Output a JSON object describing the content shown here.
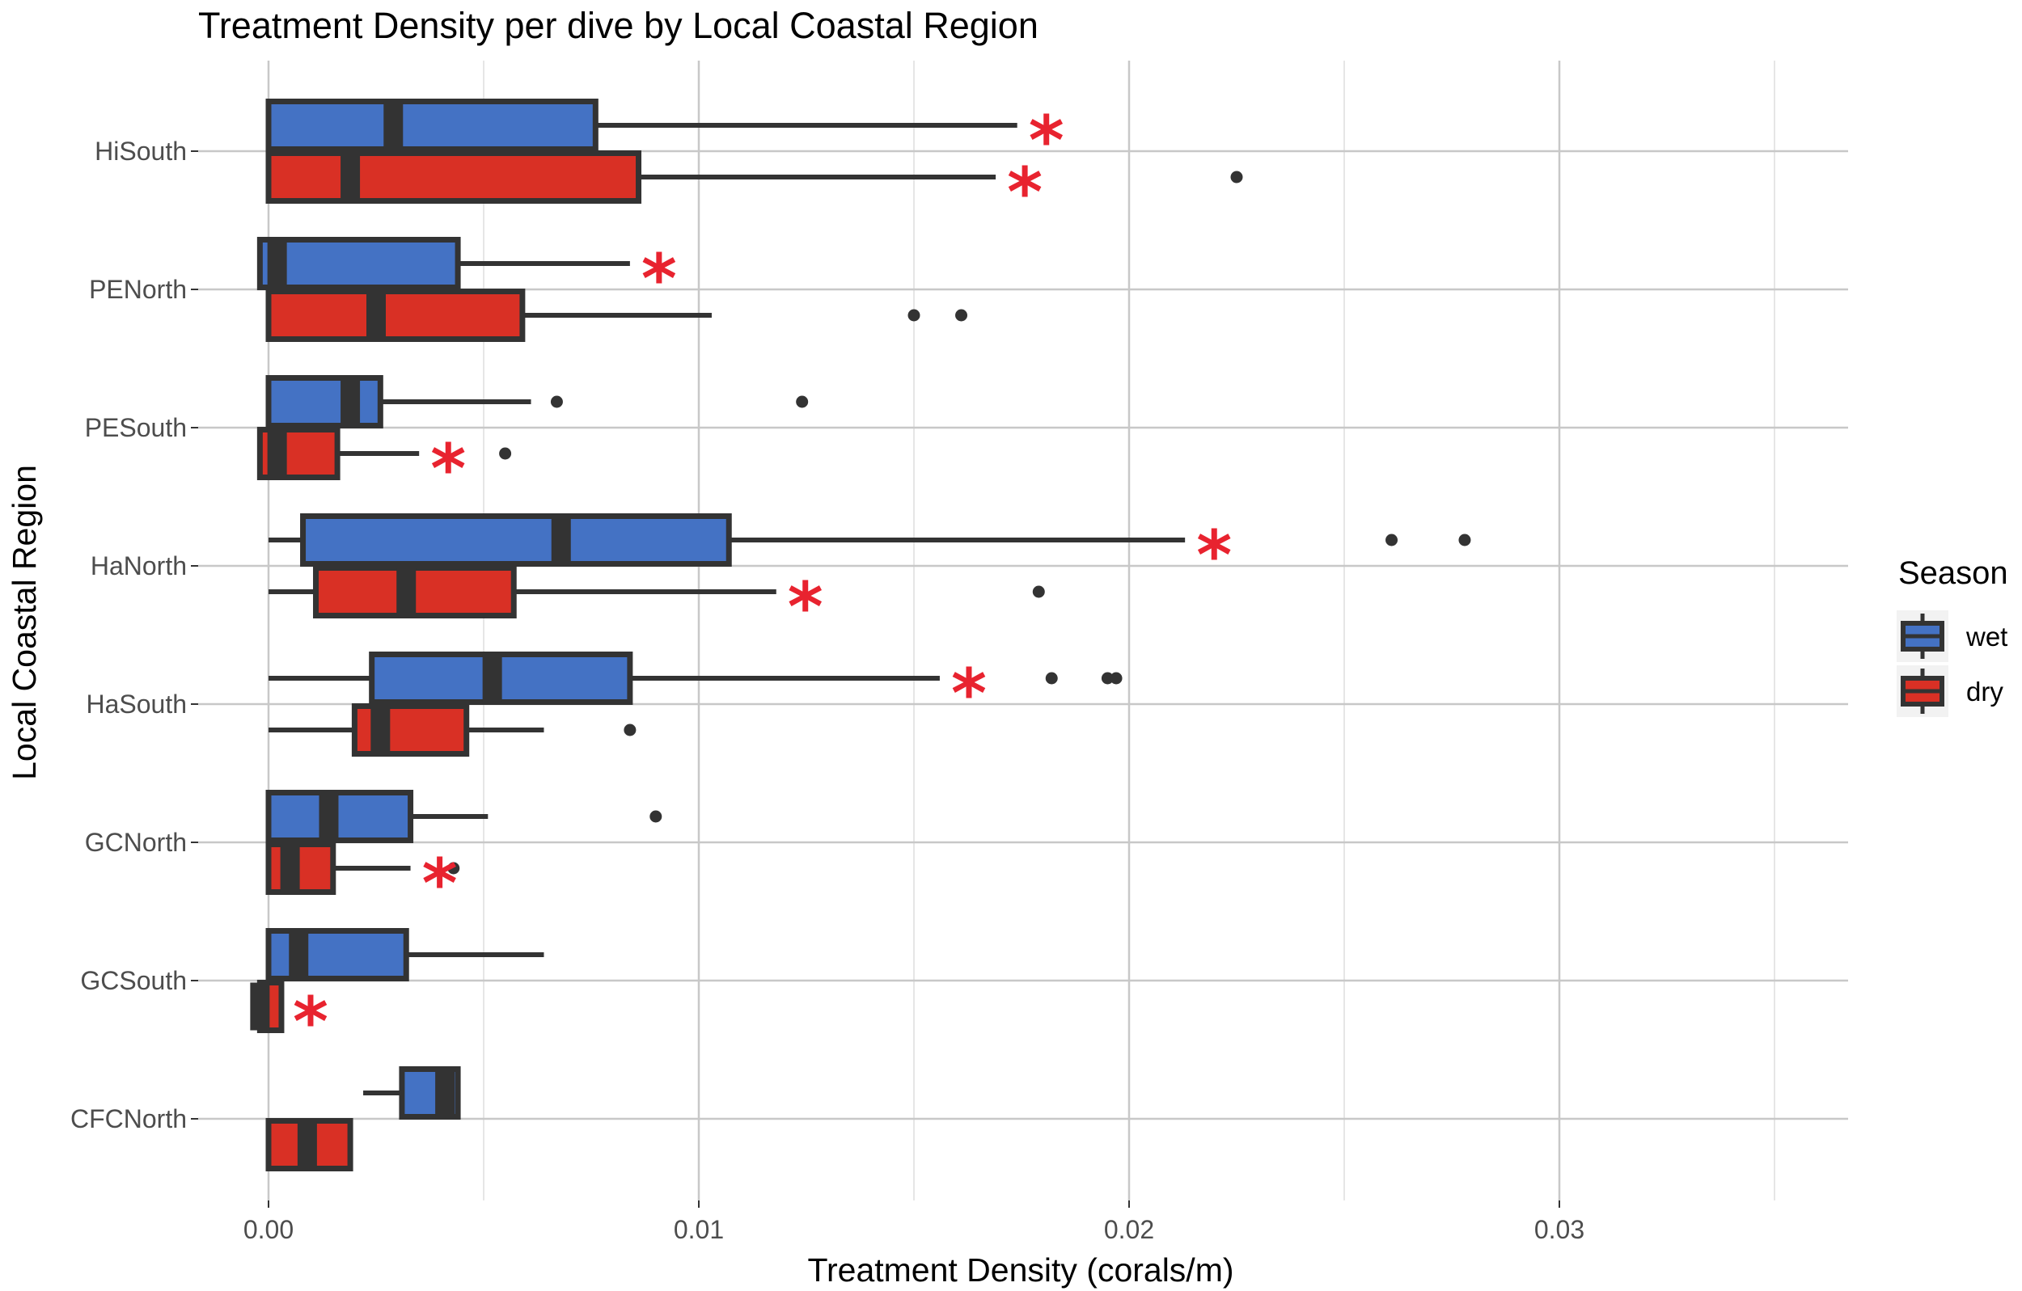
{
  "chart_data": {
    "type": "boxplot",
    "orientation": "horizontal",
    "title": "Treatment Density per dive by Local Coastal Region",
    "xlabel": "Treatment Density (corals/m)",
    "ylabel": "Local Coastal Region",
    "xlim": [
      -0.0016,
      0.0367
    ],
    "x_ticks": [
      0.0,
      0.01,
      0.02,
      0.03
    ],
    "x_tick_labels": [
      "0.00",
      "0.01",
      "0.02",
      "0.03"
    ],
    "grid": true,
    "legend": {
      "title": "Season",
      "position": "right",
      "entries": [
        {
          "name": "wet",
          "color": "#4472C4"
        },
        {
          "name": "dry",
          "color": "#D93025"
        }
      ]
    },
    "colors": {
      "wet": "#4472C4",
      "dry": "#D93025",
      "outline": "#333333",
      "star": "#E8232F",
      "grid": "#c8c8c8"
    },
    "categories": [
      "HiSouth",
      "PENorth",
      "PESouth",
      "HaNorth",
      "HaSouth",
      "GCNorth",
      "GCSouth",
      "CFCNorth"
    ],
    "series": [
      {
        "name": "wet",
        "boxes": [
          {
            "category": "HiSouth",
            "min": 0.0,
            "q1": 0.0,
            "median": 0.0029,
            "q3": 0.0076,
            "max": 0.0174,
            "outliers": [],
            "significant": true
          },
          {
            "category": "PENorth",
            "min": -0.0002,
            "q1": -0.0002,
            "median": 0.0002,
            "q3": 0.0044,
            "max": 0.0084,
            "outliers": [],
            "significant": true
          },
          {
            "category": "PESouth",
            "min": 0.0,
            "q1": 0.0,
            "median": 0.0019,
            "q3": 0.0026,
            "max": 0.0061,
            "outliers": [
              0.0067,
              0.0124
            ],
            "significant": false
          },
          {
            "category": "HaNorth",
            "min": 0.0,
            "q1": 0.0008,
            "median": 0.0068,
            "q3": 0.0107,
            "max": 0.0213,
            "outliers": [
              0.0261,
              0.0278
            ],
            "significant": true
          },
          {
            "category": "HaSouth",
            "min": 0.0,
            "q1": 0.0024,
            "median": 0.0052,
            "q3": 0.0084,
            "max": 0.0156,
            "outliers": [
              0.0182,
              0.0195,
              0.0197
            ],
            "significant": true
          },
          {
            "category": "GCNorth",
            "min": 0.0,
            "q1": 0.0,
            "median": 0.0014,
            "q3": 0.0033,
            "max": 0.0051,
            "outliers": [
              0.009
            ],
            "significant": false
          },
          {
            "category": "GCSouth",
            "min": 0.0,
            "q1": 0.0,
            "median": 0.0007,
            "q3": 0.0032,
            "max": 0.0064,
            "outliers": [],
            "significant": false
          },
          {
            "category": "CFCNorth",
            "min": 0.0022,
            "q1": 0.0031,
            "median": 0.0041,
            "q3": 0.0044,
            "max": 0.0044,
            "outliers": [],
            "significant": false
          }
        ]
      },
      {
        "name": "dry",
        "boxes": [
          {
            "category": "HiSouth",
            "min": 0.0,
            "q1": 0.0,
            "median": 0.0019,
            "q3": 0.0086,
            "max": 0.0169,
            "outliers": [
              0.0225
            ],
            "significant": true
          },
          {
            "category": "PENorth",
            "min": 0.0,
            "q1": 0.0,
            "median": 0.0025,
            "q3": 0.0059,
            "max": 0.0103,
            "outliers": [
              0.015,
              0.0161
            ],
            "significant": false
          },
          {
            "category": "PESouth",
            "min": -0.0002,
            "q1": -0.0002,
            "median": 0.0002,
            "q3": 0.0016,
            "max": 0.0035,
            "outliers": [
              0.0055
            ],
            "significant": true
          },
          {
            "category": "HaNorth",
            "min": 0.0,
            "q1": 0.0011,
            "median": 0.0032,
            "q3": 0.0057,
            "max": 0.0118,
            "outliers": [
              0.0179
            ],
            "significant": true
          },
          {
            "category": "HaSouth",
            "min": 0.0,
            "q1": 0.002,
            "median": 0.0026,
            "q3": 0.0046,
            "max": 0.0064,
            "outliers": [
              0.0084
            ],
            "significant": false
          },
          {
            "category": "GCNorth",
            "min": 0.0,
            "q1": 0.0,
            "median": 0.0005,
            "q3": 0.0015,
            "max": 0.0033,
            "outliers": [
              0.0043
            ],
            "significant": true
          },
          {
            "category": "GCSouth",
            "min": -0.0002,
            "q1": -0.0002,
            "median": -0.0002,
            "q3": 0.0003,
            "max": 0.0003,
            "outliers": [],
            "significant": true
          },
          {
            "category": "CFCNorth",
            "min": 0.0,
            "q1": 0.0,
            "median": 0.0009,
            "q3": 0.0019,
            "max": 0.0019,
            "outliers": [],
            "significant": false
          }
        ]
      }
    ]
  }
}
